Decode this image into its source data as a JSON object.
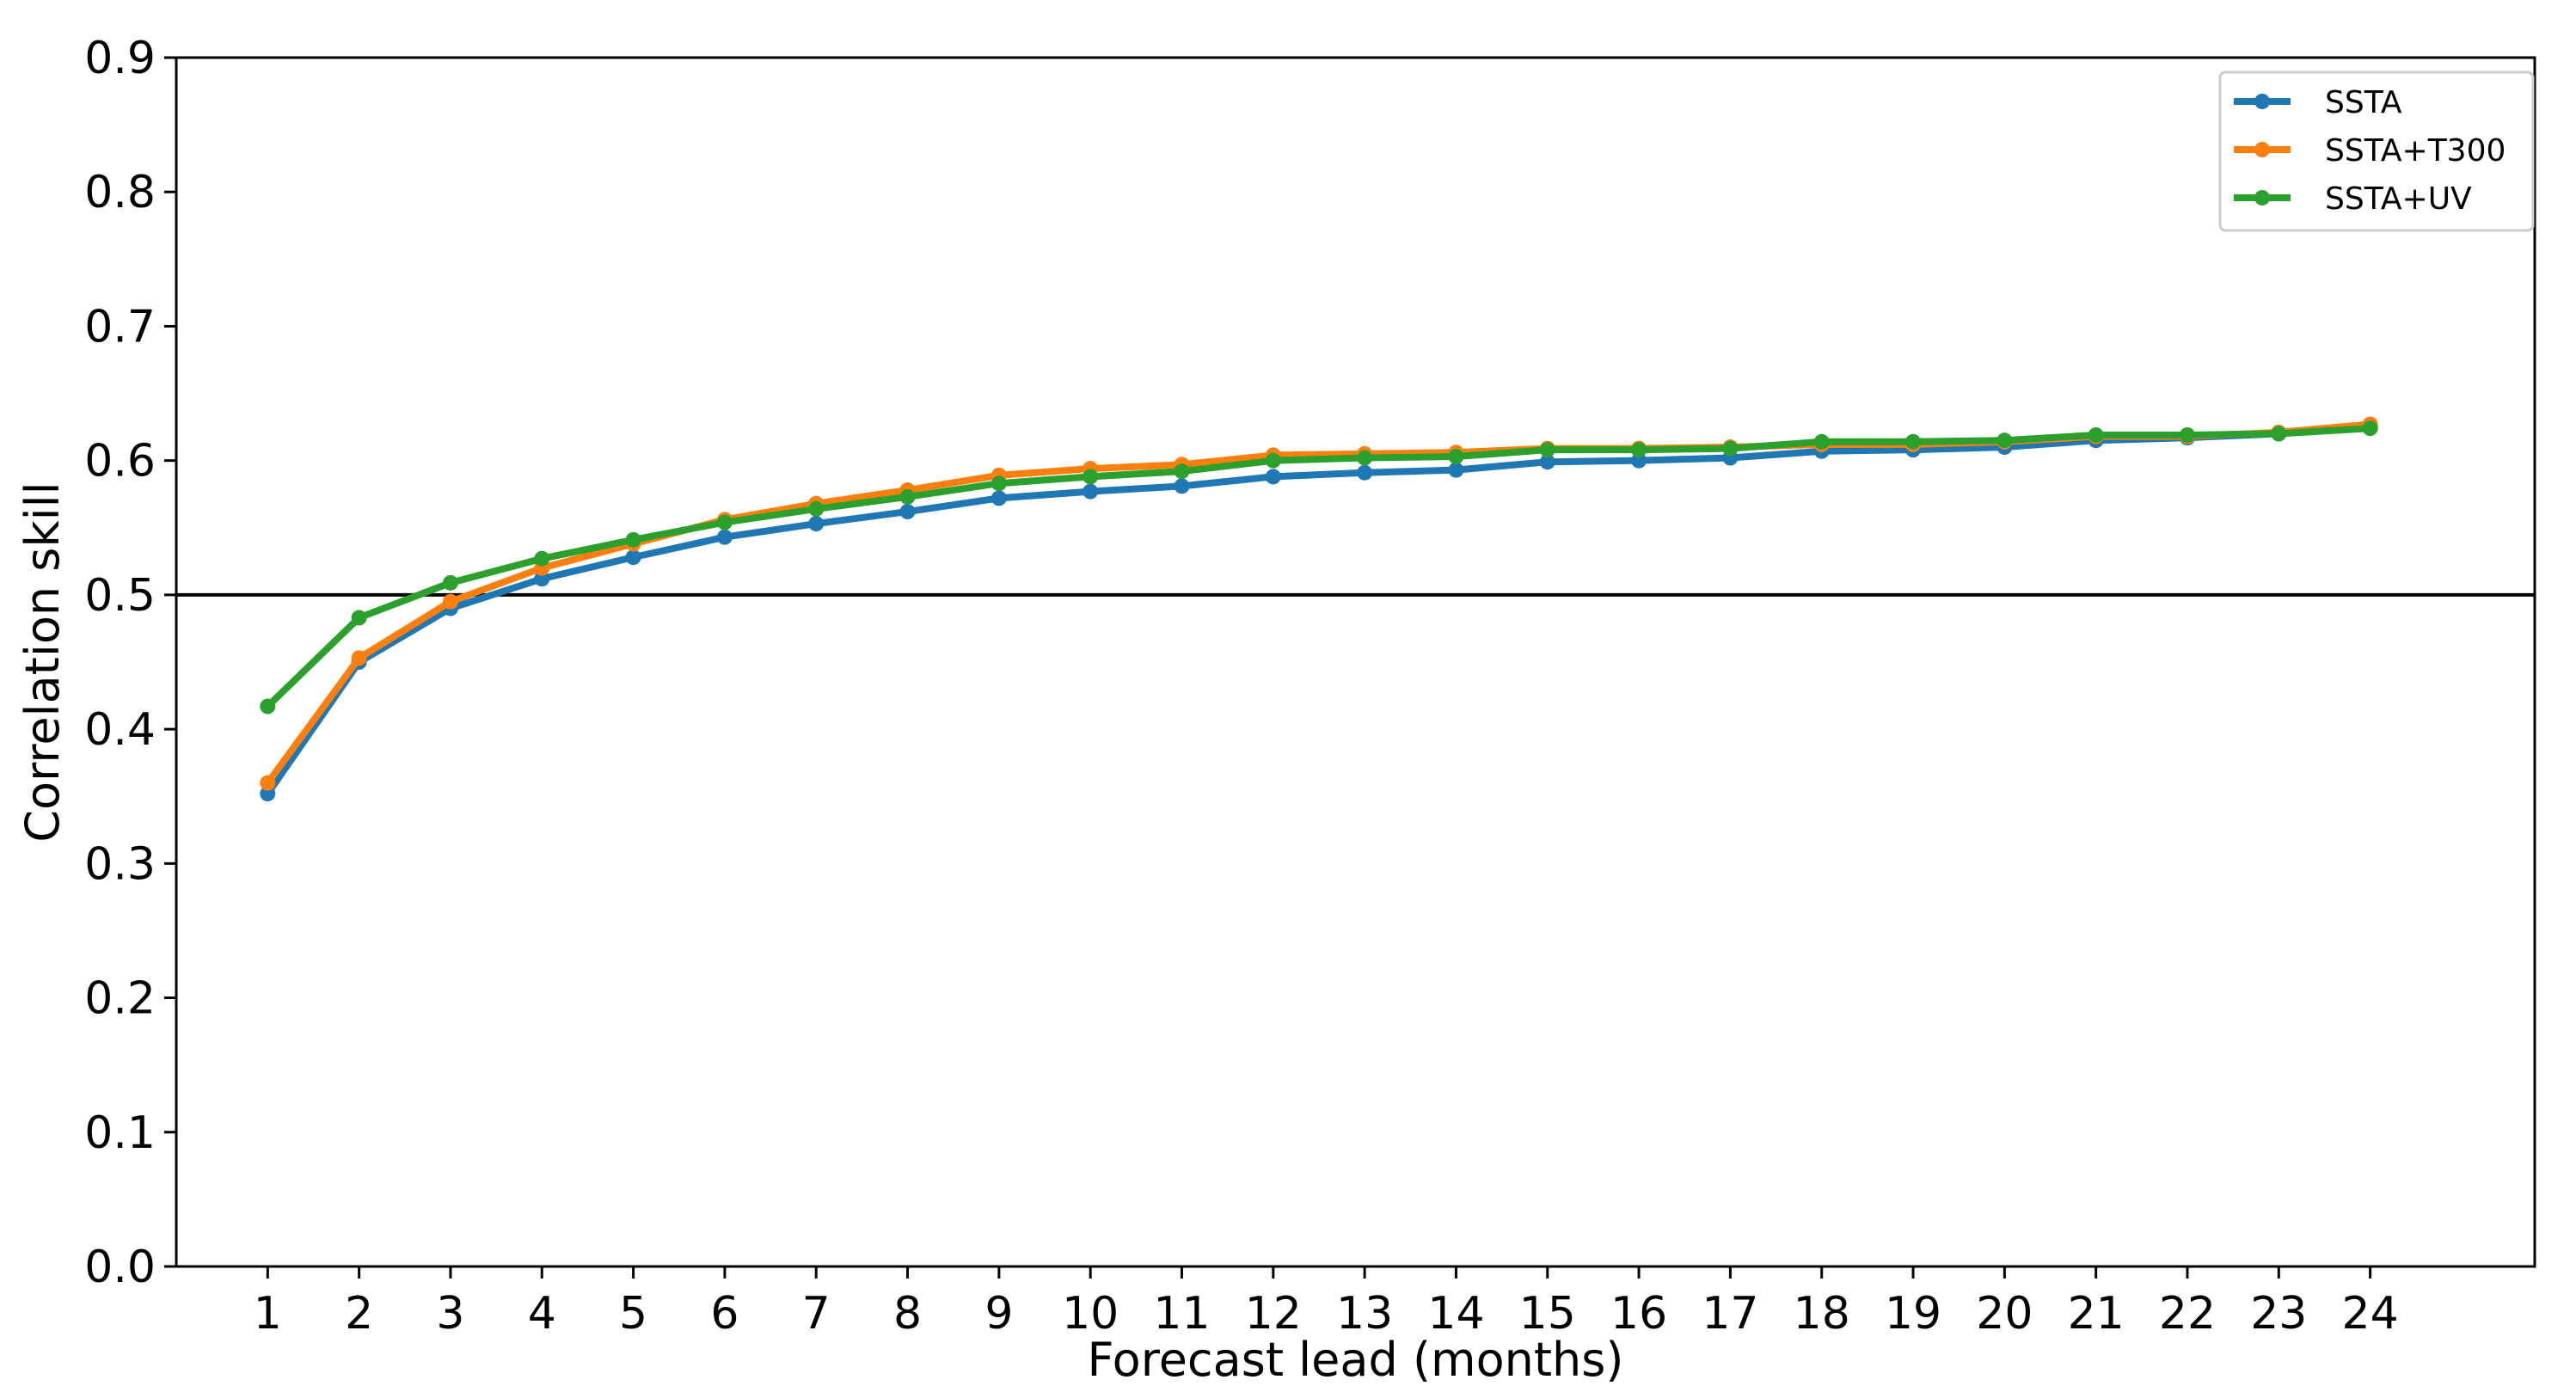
{
  "chart_data": {
    "type": "line",
    "title": "",
    "xlabel": "Forecast lead (months)",
    "ylabel": "Correlation skill",
    "x": [
      1,
      2,
      3,
      4,
      5,
      6,
      7,
      8,
      9,
      10,
      11,
      12,
      13,
      14,
      15,
      16,
      17,
      18,
      19,
      20,
      21,
      22,
      23,
      24
    ],
    "xticks": [
      "1",
      "2",
      "3",
      "4",
      "5",
      "6",
      "7",
      "8",
      "9",
      "10",
      "11",
      "12",
      "13",
      "14",
      "15",
      "16",
      "17",
      "18",
      "19",
      "20",
      "21",
      "22",
      "23",
      "24"
    ],
    "ylim": [
      0.0,
      0.9
    ],
    "yticks": [
      "0.0",
      "0.1",
      "0.2",
      "0.3",
      "0.4",
      "0.5",
      "0.6",
      "0.7",
      "0.8",
      "0.9"
    ],
    "reference_line": {
      "y": 0.5,
      "color": "#000000"
    },
    "grid": false,
    "legend_position": "top-right",
    "series": [
      {
        "name": "SSTA",
        "color": "#1f77b4",
        "values": [
          0.352,
          0.45,
          0.49,
          0.512,
          0.528,
          0.543,
          0.553,
          0.562,
          0.572,
          0.577,
          0.581,
          0.588,
          0.591,
          0.593,
          0.599,
          0.6,
          0.602,
          0.607,
          0.608,
          0.61,
          0.615,
          0.617,
          0.62,
          0.625
        ]
      },
      {
        "name": "SSTA+T300",
        "color": "#ff7f0e",
        "values": [
          0.36,
          0.453,
          0.495,
          0.52,
          0.538,
          0.556,
          0.568,
          0.578,
          0.589,
          0.594,
          0.597,
          0.604,
          0.605,
          0.606,
          0.609,
          0.609,
          0.61,
          0.612,
          0.612,
          0.614,
          0.618,
          0.618,
          0.621,
          0.627
        ]
      },
      {
        "name": "SSTA+UV",
        "color": "#2ca02c",
        "values": [
          0.417,
          0.483,
          0.509,
          0.527,
          0.541,
          0.554,
          0.564,
          0.573,
          0.583,
          0.588,
          0.592,
          0.6,
          0.602,
          0.603,
          0.608,
          0.608,
          0.609,
          0.614,
          0.614,
          0.615,
          0.619,
          0.619,
          0.62,
          0.624
        ]
      }
    ]
  }
}
